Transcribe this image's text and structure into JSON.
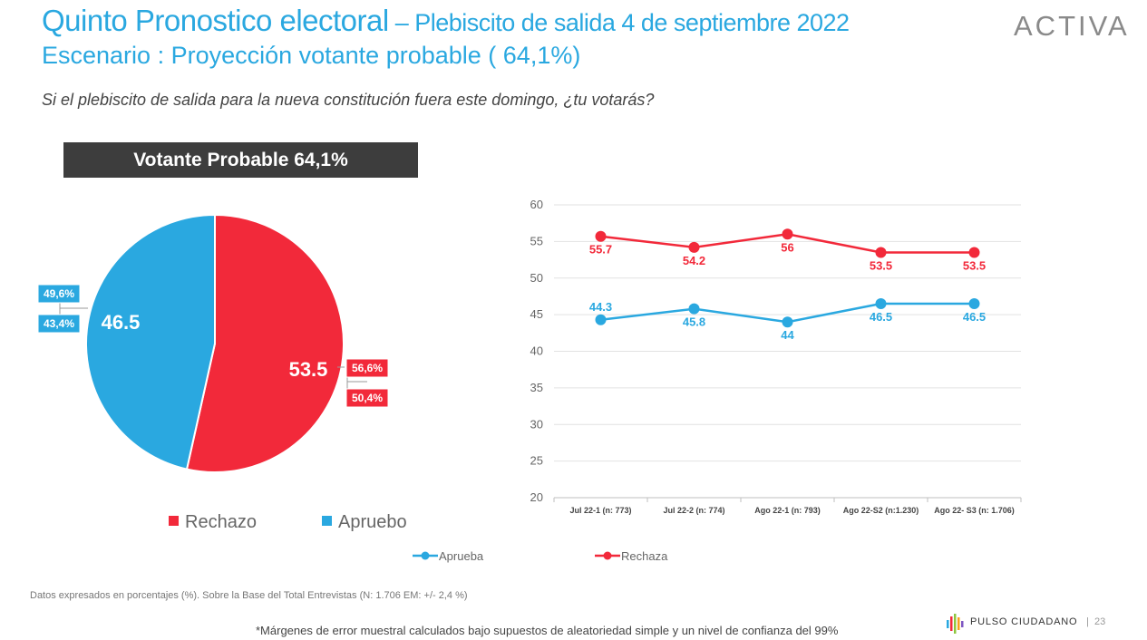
{
  "header": {
    "title_main": "Quinto Pronostico electoral",
    "title_sub": " – Plebiscito de salida 4 de septiembre 2022",
    "scenario": "Escenario : Proyección votante probable ( 64,1%)",
    "logo": "ACTIVA",
    "question": "Si el plebiscito de salida para la nueva constitución fuera este domingo, ¿tu votarás?"
  },
  "colors": {
    "rechazo": "#f2293a",
    "apruebo": "#2aa8e0",
    "header_bg": "#3d3d3d",
    "title": "#2aa8e0"
  },
  "chart_data": [
    {
      "type": "pie",
      "title": "Votante Probable 64,1%",
      "slices": [
        {
          "name": "Rechazo",
          "value": 53.5,
          "value_label": "53.5",
          "range_high": "56,6%",
          "range_low": "50,4%"
        },
        {
          "name": "Apruebo",
          "value": 46.5,
          "value_label": "46.5",
          "range_high": "49,6%",
          "range_low": "43,4%"
        }
      ],
      "legend_position": "bottom"
    },
    {
      "type": "line",
      "categories": [
        "Jul 22-1 (n: 773)",
        "Jul 22-2 (n: 774)",
        "Ago 22-1 (n: 793)",
        "Ago 22-S2 (n:1.230)",
        "Ago 22- S3 (n: 1.706)"
      ],
      "series": [
        {
          "name": "Apruebo",
          "legend_label": "Aprueba",
          "values": [
            44.3,
            45.8,
            44,
            46.5,
            46.5
          ],
          "labels": [
            "44.3",
            "45.8",
            "44",
            "46.5",
            "46.5"
          ]
        },
        {
          "name": "Rechazo",
          "legend_label": "Rechaza",
          "values": [
            55.7,
            54.2,
            56,
            53.5,
            53.5
          ],
          "labels": [
            "55.7",
            "54.2",
            "56",
            "53.5",
            "53.5"
          ]
        }
      ],
      "ylim": [
        20,
        60
      ],
      "yticks": [
        20,
        25,
        30,
        35,
        40,
        45,
        50,
        55,
        60
      ],
      "grid": true,
      "legend_position": "bottom"
    }
  ],
  "footer": {
    "note": "Datos expresados en porcentajes (%). Sobre la Base del Total Entrevistas (N: 1.706 EM: +/- 2,4 %)",
    "disclaimer": "*Márgenes de error muestral calculados bajo supuestos de aleatoriedad simple y un nivel de confianza del 99%",
    "brand": "PULSO CIUDADANO",
    "separator": "|",
    "page_number": "23"
  }
}
